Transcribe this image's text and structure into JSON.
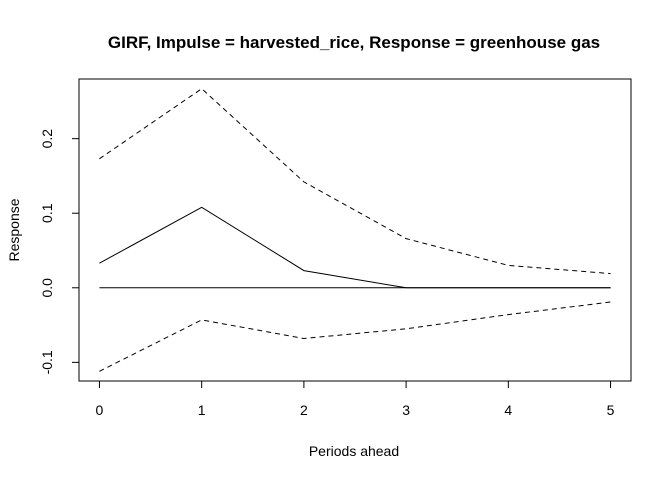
{
  "chart_data": {
    "type": "line",
    "title": "GIRF, Impulse = harvested_rice, Response = greenhouse gas",
    "xlabel": "Periods ahead",
    "ylabel": "Response",
    "x": [
      0,
      1,
      2,
      3,
      4,
      5
    ],
    "x_ticks": [
      "0",
      "1",
      "2",
      "3",
      "4",
      "5"
    ],
    "y_ticks": [
      "-0.1",
      "0.0",
      "0.1",
      "0.2"
    ],
    "xlim": [
      -0.2,
      5.2
    ],
    "ylim": [
      -0.125,
      0.28
    ],
    "series": [
      {
        "role": "upper",
        "style": "dashed",
        "values": [
          0.173,
          0.267,
          0.142,
          0.066,
          0.03,
          0.019
        ]
      },
      {
        "role": "irf",
        "style": "solid",
        "values": [
          0.033,
          0.108,
          0.023,
          0.0,
          0.0,
          0.0
        ]
      },
      {
        "role": "lower",
        "style": "dashed",
        "values": [
          -0.112,
          -0.043,
          -0.068,
          -0.055,
          -0.036,
          -0.019
        ]
      }
    ],
    "zero_line": 0,
    "grid": false,
    "legend": "none"
  }
}
